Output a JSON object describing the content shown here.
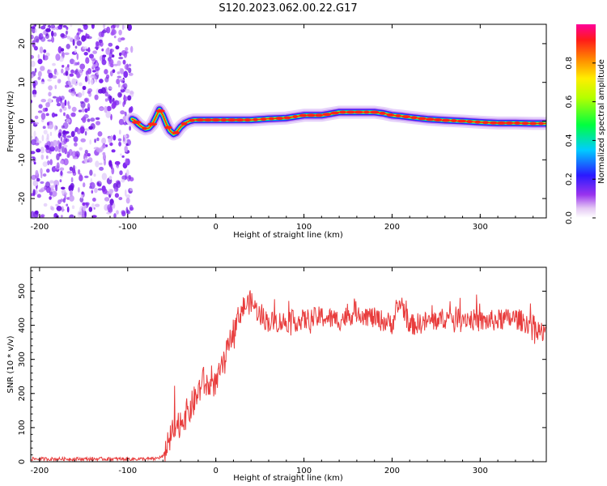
{
  "title": "S120.2023.062.00.22.G17",
  "chart_data": [
    {
      "type": "heatmap",
      "xlabel": "Height of straight line (km)",
      "ylabel": "Frequency (Hz)",
      "xlim": [
        -210,
        375
      ],
      "ylim": [
        -25,
        25
      ],
      "xticks": [
        -200,
        -100,
        0,
        100,
        200,
        300
      ],
      "yticks": [
        -20,
        -10,
        0,
        10,
        20
      ],
      "noise_region_x": [
        -210,
        -95
      ],
      "ridge": {
        "x": [
          -95,
          -92,
          -88,
          -84,
          -80,
          -76,
          -72,
          -68,
          -64,
          -60,
          -56,
          -52,
          -48,
          -45,
          -40,
          -35,
          -30,
          -25,
          -20,
          -10,
          0,
          20,
          40,
          60,
          80,
          100,
          120,
          140,
          160,
          180,
          190,
          200,
          210,
          220,
          240,
          260,
          280,
          300,
          320,
          340,
          360,
          375
        ],
        "y": [
          0.5,
          0.2,
          -0.8,
          -1.5,
          -2.0,
          -1.8,
          -0.8,
          1.0,
          3.0,
          1.5,
          -0.8,
          -2.5,
          -3.3,
          -3.0,
          -1.5,
          -0.5,
          0.0,
          0.3,
          0.3,
          0.3,
          0.3,
          0.3,
          0.3,
          0.6,
          0.8,
          1.5,
          1.5,
          2.3,
          2.3,
          2.3,
          2.0,
          1.5,
          1.3,
          1.0,
          0.5,
          0.2,
          0.0,
          -0.3,
          -0.5,
          -0.5,
          -0.6,
          -0.6
        ]
      },
      "colorbar": {
        "label": "Normalized spectral amplitude",
        "range": [
          0,
          1
        ],
        "ticks": [
          "0.0",
          "0.2",
          "0.4",
          "0.6",
          "0.8"
        ],
        "tick_values": [
          0,
          0.2,
          0.4,
          0.6,
          0.8
        ]
      }
    },
    {
      "type": "line",
      "xlabel": "Height of straight line (km)",
      "ylabel": "SNR (10 * v/v)",
      "xlim": [
        -210,
        375
      ],
      "ylim": [
        0,
        570
      ],
      "xticks": [
        -200,
        -100,
        0,
        100,
        200,
        300
      ],
      "yticks": [
        0,
        100,
        200,
        300,
        400,
        500
      ],
      "color": "#e83c3c",
      "series": [
        {
          "x": [
            -210,
            -150,
            -100,
            -70,
            -60,
            -55,
            -50,
            -40,
            -30,
            -20,
            -15,
            -10,
            0,
            10,
            20,
            30,
            40,
            50,
            60,
            80,
            100,
            120,
            140,
            160,
            180,
            200,
            210,
            220,
            240,
            260,
            280,
            300,
            320,
            340,
            360,
            375
          ],
          "values": [
            8,
            8,
            8,
            8,
            15,
            40,
            80,
            120,
            150,
            200,
            240,
            220,
            230,
            300,
            390,
            450,
            470,
            430,
            410,
            410,
            415,
            425,
            415,
            440,
            420,
            405,
            470,
            400,
            410,
            420,
            425,
            410,
            415,
            420,
            400,
            370
          ]
        }
      ]
    }
  ]
}
